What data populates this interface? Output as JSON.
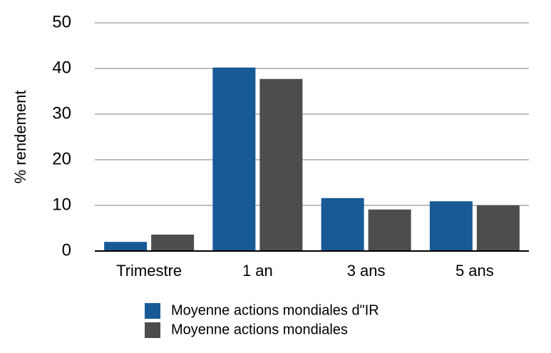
{
  "chart_data": {
    "type": "bar",
    "y_label": "% rendement",
    "categories": [
      "Trimestre",
      "1 an",
      "3 ans",
      "5 ans"
    ],
    "series": [
      {
        "name": "Moyenne actions mondiales d\"IR",
        "color": "#175a96",
        "values": [
          2.0,
          40.2,
          11.6,
          10.9
        ]
      },
      {
        "name": "Moyenne actions mondiales",
        "color": "#4d4d4d",
        "values": [
          3.6,
          37.7,
          9.1,
          10.0
        ]
      }
    ],
    "ylim": [
      0,
      50
    ],
    "yticks": [
      0,
      10,
      20,
      30,
      40,
      50
    ],
    "grid": true,
    "legend": "bottom"
  }
}
